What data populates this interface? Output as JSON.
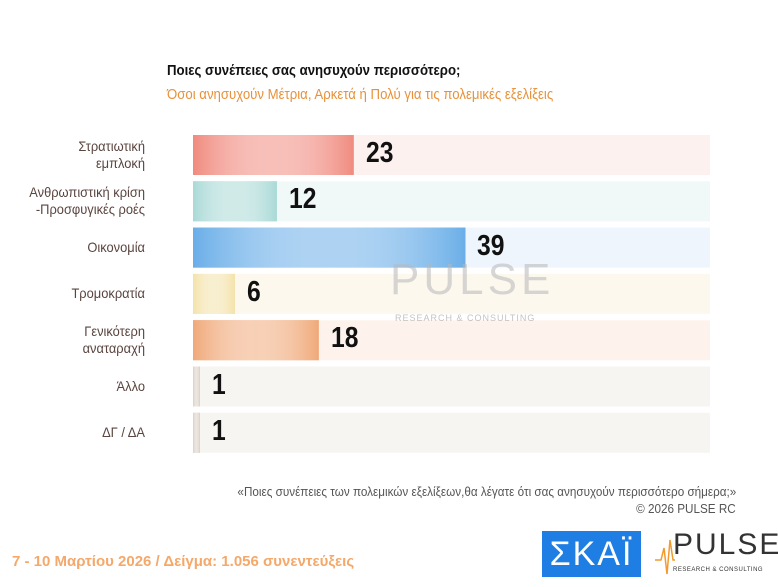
{
  "chart_data": {
    "type": "bar",
    "orientation": "horizontal",
    "title": "Ποιες συνέπειες σας ανησυχούν περισσότερο;",
    "subtitle": "Όσοι ανησυχούν Μέτρια, Αρκετά ή Πολύ για τις πολεμικές εξελίξεις",
    "categories": [
      [
        "Στρατιωτική",
        "εμπλοκή"
      ],
      [
        "Ανθρωπιστική κρίση",
        "-Προσφυγικές ροές"
      ],
      [
        "Οικονομία"
      ],
      [
        "Τρομοκρατία"
      ],
      [
        "Γενικότερη",
        "αναταραχή"
      ],
      [
        "Άλλο"
      ],
      [
        "ΔΓ / ΔΑ"
      ]
    ],
    "values": [
      23,
      12,
      39,
      6,
      18,
      1,
      1
    ],
    "colors": [
      "#f08a7e",
      "#a9d9d6",
      "#6aaee8",
      "#f3e2a8",
      "#f0a878",
      "#d8cfc4",
      "#d8cfc4"
    ],
    "track_colors": [
      "#fdf1f0",
      "#f1f8f8",
      "#eef5fc",
      "#fdf8ee",
      "#fdf3ec",
      "#f7f5f2",
      "#f7f5f2"
    ],
    "xlim": [
      0,
      74
    ],
    "grid": false,
    "legend": "none"
  },
  "watermark": {
    "main": "PULSE",
    "sub": "RESEARCH & CONSULTING"
  },
  "question_note": "«Ποιες συνέπειες των πολεμικών εξελίξεων,θα λέγατε ότι σας ανησυχούν περισσότερο σήμερα;»",
  "copyright": "©  2026  PULSE RC",
  "footer": "7 - 10  Μαρτίου 2026  /  Δείγμα:  1.056 συνεντεύξεις",
  "logos": {
    "skai": "ΣΚΑΪ",
    "pulse": "PULSE",
    "pulse_sub": "RESEARCH & CONSULTING"
  }
}
